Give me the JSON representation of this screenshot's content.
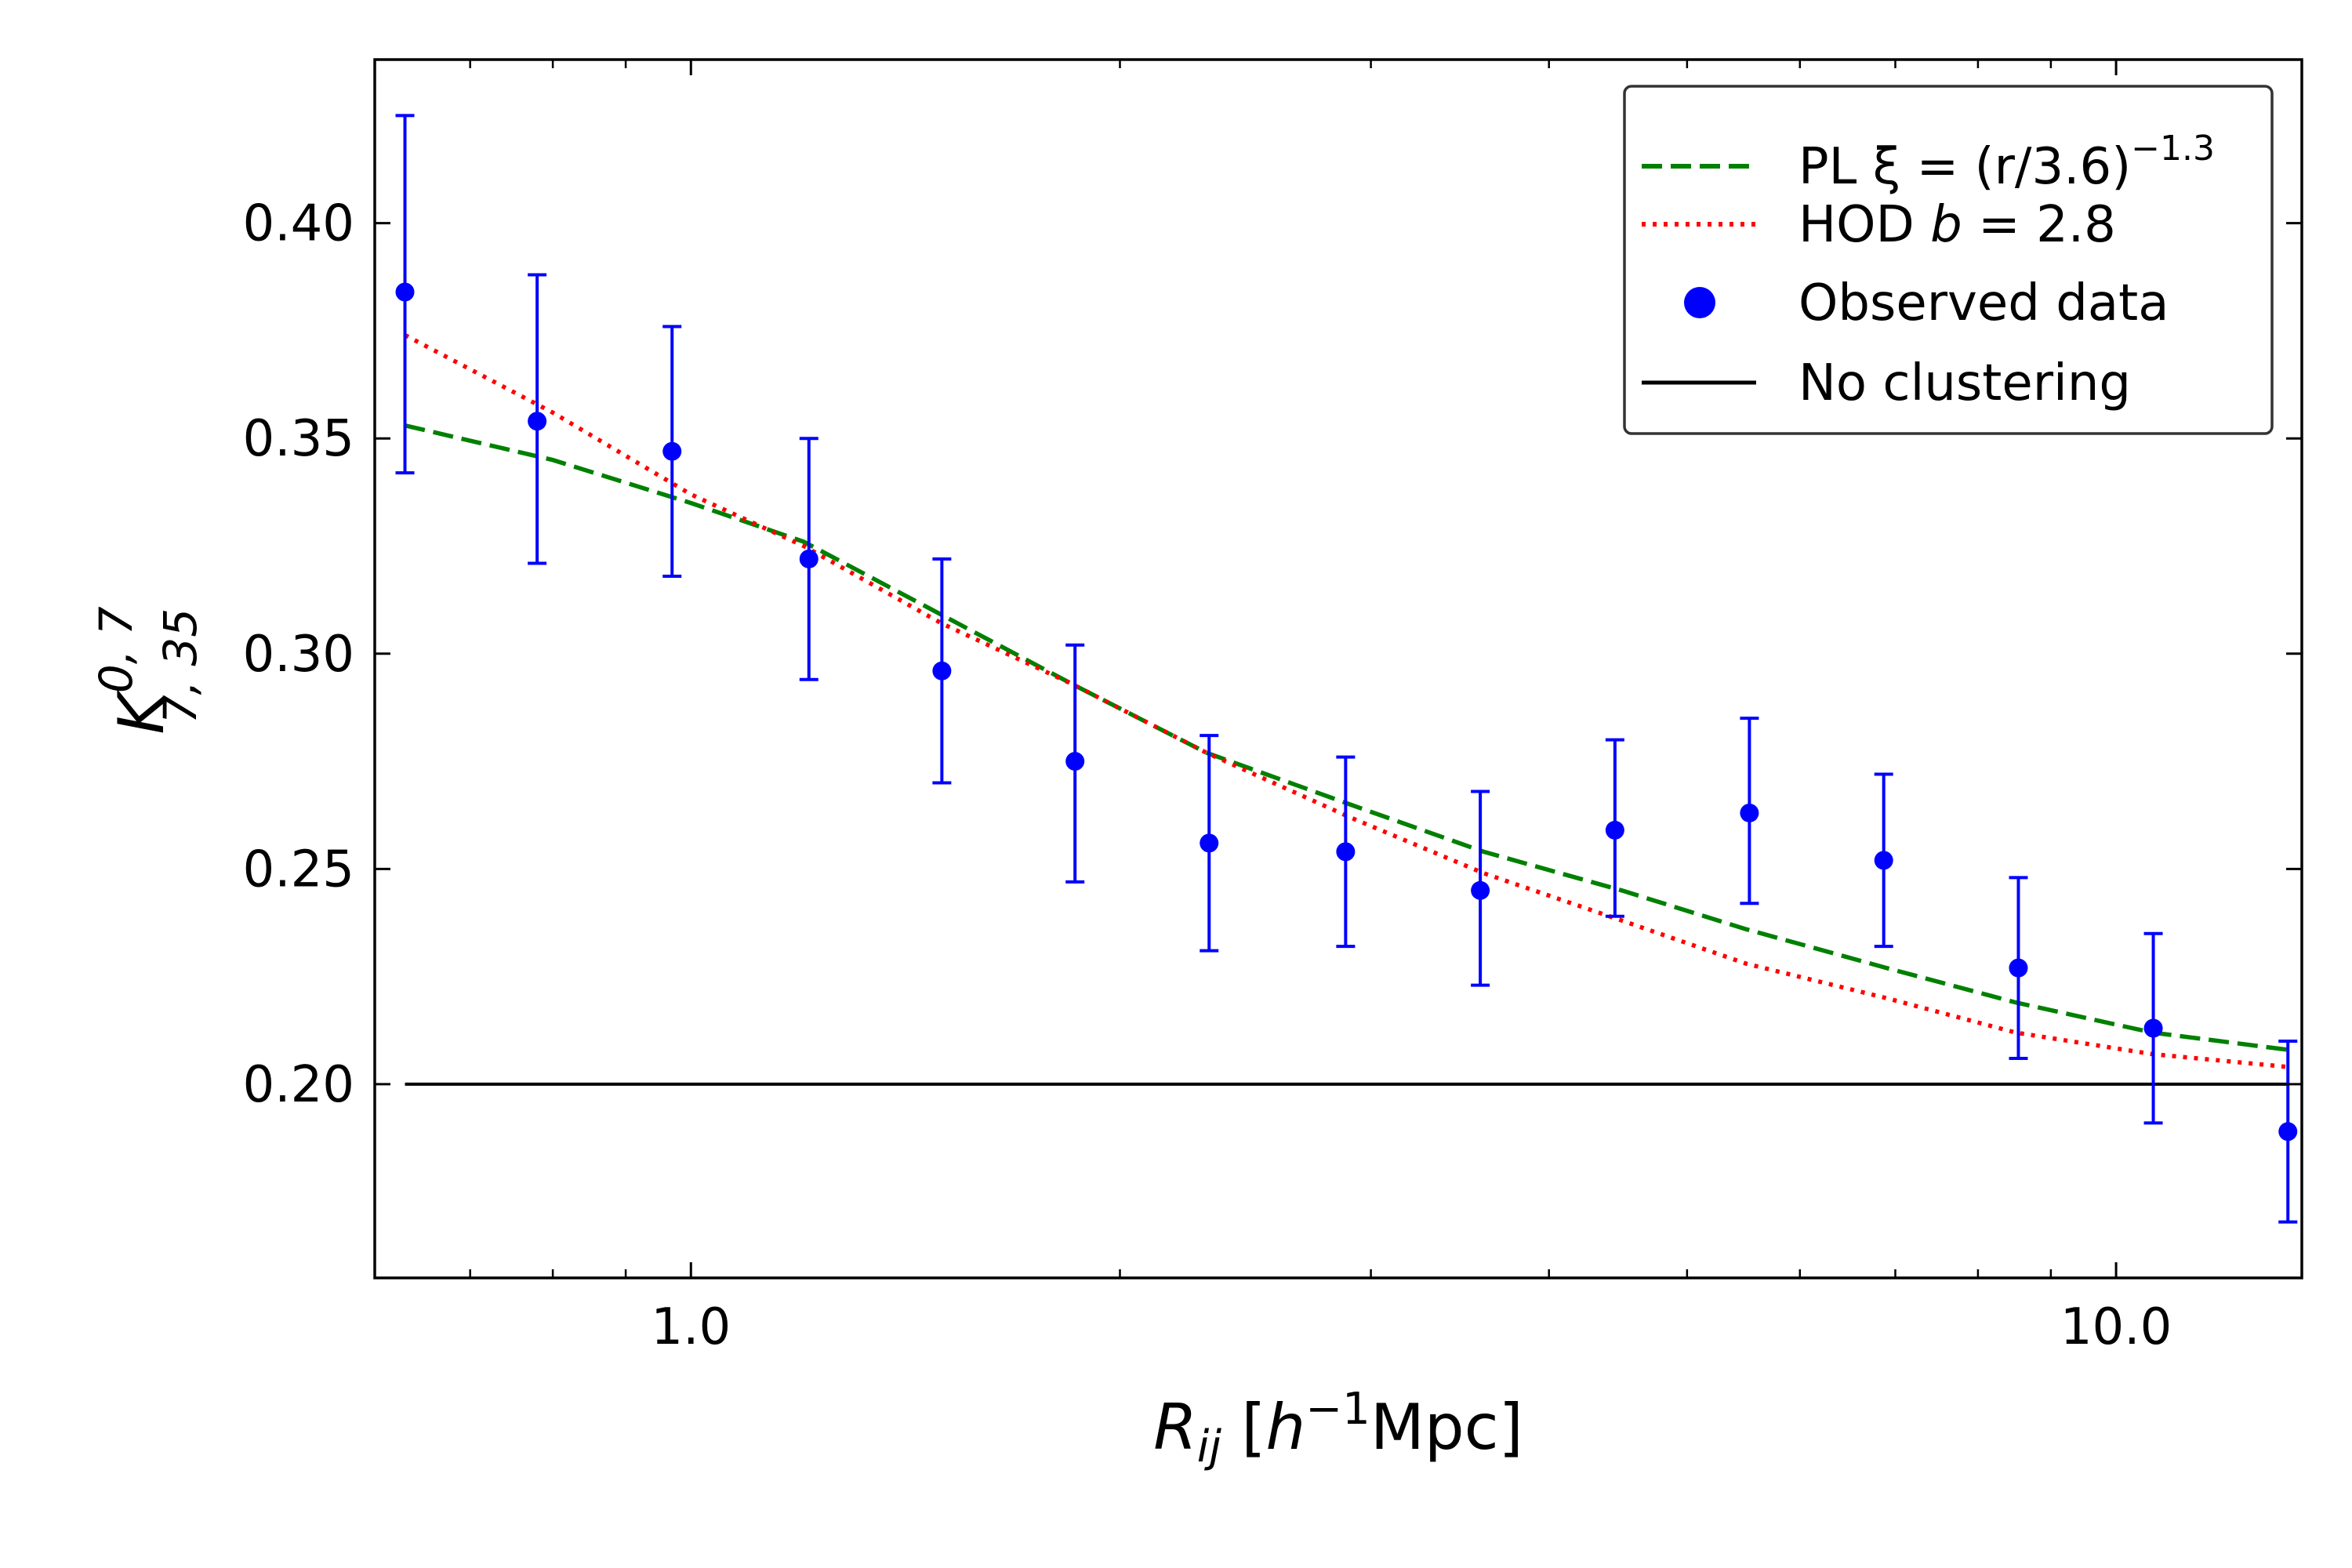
{
  "chart_data": {
    "type": "line",
    "xscale": "log",
    "xlim": [
      0.6,
      13.5
    ],
    "ylim": [
      0.155,
      0.438
    ],
    "xticks": [
      {
        "value": 1.0,
        "label": "1.0"
      },
      {
        "value": 10.0,
        "label": "10.0"
      }
    ],
    "yticks": [
      {
        "value": 0.2,
        "label": "0.20"
      },
      {
        "value": 0.25,
        "label": "0.25"
      },
      {
        "value": 0.3,
        "label": "0.30"
      },
      {
        "value": 0.35,
        "label": "0.35"
      },
      {
        "value": 0.4,
        "label": "0.40"
      }
    ],
    "xlabel": {
      "main": "R",
      "sub": "ij",
      "unit_open": " [",
      "h": "h",
      "exp": "−1",
      "unit_rest": "Mpc]"
    },
    "ylabel": {
      "main": "K",
      "sup": "0, 7",
      "sub": "7, 35"
    },
    "series": [
      {
        "name": "Observed data",
        "kind": "errorbar",
        "color": "#0000ff",
        "x": [
          0.63,
          0.78,
          0.97,
          1.21,
          1.5,
          1.86,
          2.31,
          2.88,
          3.58,
          4.45,
          5.53,
          6.87,
          8.54,
          10.62,
          13.2
        ],
        "y": [
          0.384,
          0.354,
          0.347,
          0.322,
          0.296,
          0.275,
          0.256,
          0.254,
          0.245,
          0.259,
          0.263,
          0.252,
          0.227,
          0.213,
          0.189
        ],
        "yerr_low": [
          0.342,
          0.321,
          0.318,
          0.294,
          0.27,
          0.247,
          0.231,
          0.232,
          0.223,
          0.239,
          0.242,
          0.232,
          0.206,
          0.191,
          0.168
        ],
        "yerr_high": [
          0.425,
          0.388,
          0.376,
          0.35,
          0.322,
          0.302,
          0.281,
          0.276,
          0.268,
          0.28,
          0.285,
          0.272,
          0.248,
          0.235,
          0.21
        ]
      },
      {
        "name": "PL",
        "kind": "line",
        "style": "dashed",
        "color": "#008000",
        "x": [
          0.63,
          0.8,
          1.0,
          1.2,
          1.5,
          1.85,
          2.3,
          2.9,
          3.6,
          4.5,
          5.5,
          6.9,
          8.5,
          10.6,
          13.2
        ],
        "y": [
          0.353,
          0.345,
          0.335,
          0.326,
          0.309,
          0.293,
          0.277,
          0.265,
          0.254,
          0.245,
          0.236,
          0.227,
          0.219,
          0.212,
          0.208
        ]
      },
      {
        "name": "HOD",
        "kind": "line",
        "style": "dotted",
        "color": "#ff0000",
        "x": [
          0.63,
          0.8,
          1.0,
          1.2,
          1.5,
          1.85,
          2.3,
          2.9,
          3.6,
          4.5,
          5.5,
          6.9,
          8.5,
          10.6,
          13.2
        ],
        "y": [
          0.374,
          0.356,
          0.337,
          0.325,
          0.307,
          0.293,
          0.277,
          0.262,
          0.249,
          0.238,
          0.228,
          0.22,
          0.212,
          0.207,
          0.204
        ]
      },
      {
        "name": "No clustering",
        "kind": "line",
        "style": "solid",
        "color": "#000000",
        "x": [
          0.63,
          13.2
        ],
        "y": [
          0.2,
          0.2
        ]
      }
    ],
    "legend": {
      "position": "top-right",
      "entries": [
        {
          "series": "PL",
          "text": "PL  ξ = (r/3.6)",
          "sup": "−1.3"
        },
        {
          "series": "HOD",
          "text": "HOD ",
          "italic": "b",
          "rest": " = 2.8"
        },
        {
          "series": "Observed data",
          "text": "Observed data"
        },
        {
          "series": "No clustering",
          "text": "No clustering"
        }
      ]
    }
  }
}
